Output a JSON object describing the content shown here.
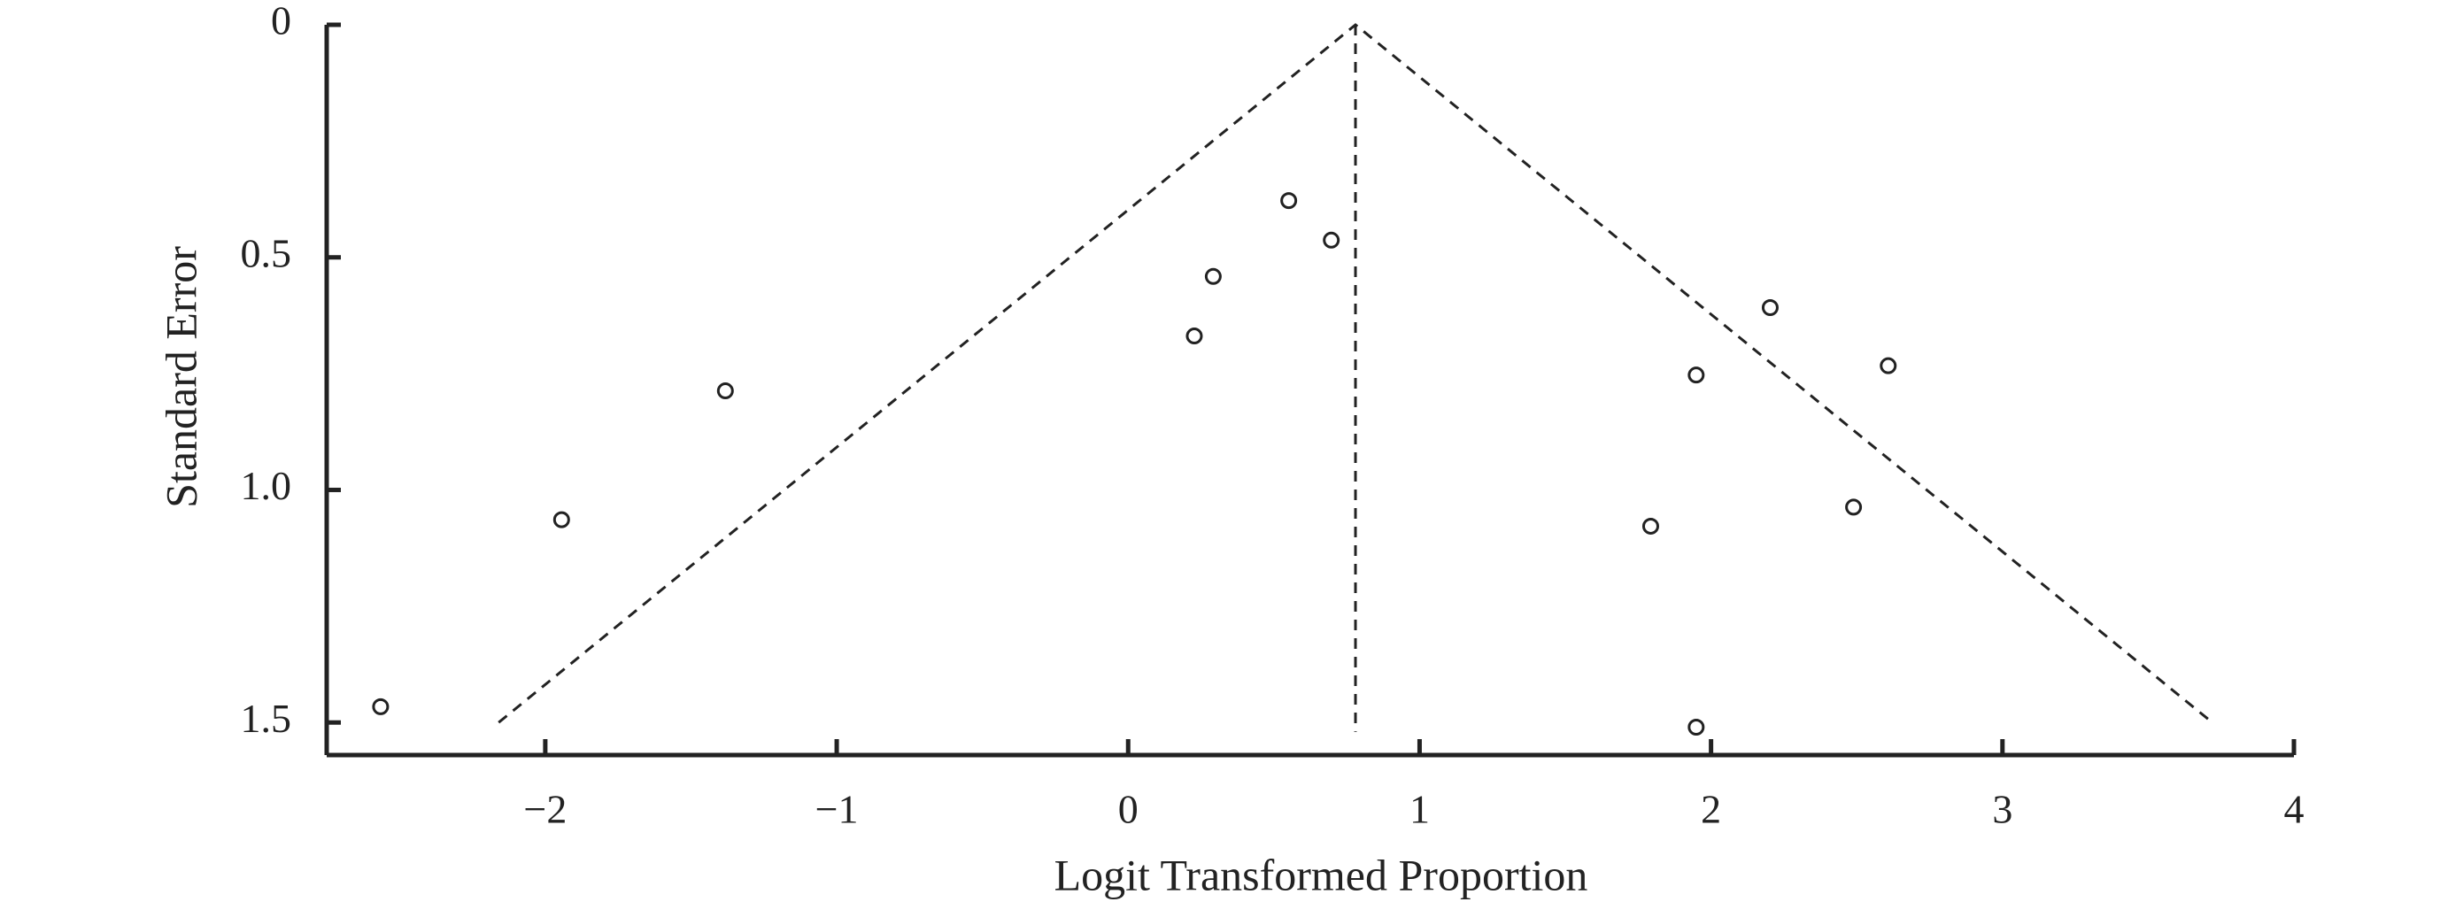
{
  "chart_data": {
    "type": "scatter",
    "x_label": "Logit Transformed Proportion",
    "y_label": "Standard Error",
    "x": [
      -2.565,
      -1.944,
      -1.382,
      0.227,
      0.292,
      0.551,
      0.697,
      2.203,
      1.949,
      2.608,
      1.793,
      2.489,
      1.949
    ],
    "values": [
      1.466,
      1.064,
      0.787,
      0.669,
      0.541,
      0.378,
      0.463,
      0.608,
      0.753,
      0.733,
      1.078,
      1.037,
      1.51
    ],
    "color": "#222222",
    "funnel": {
      "x": [
        -2.16,
        0.78,
        3.72
      ],
      "y": [
        1.5,
        0,
        1.5
      ]
    },
    "reference_line": {
      "x": 0.78,
      "y": [
        0,
        1.52
      ]
    },
    "xlim": [
      -2.75,
      4
    ],
    "ylim": [
      0,
      1.57
    ],
    "y_inverted": true,
    "xticks": [
      {
        "value": -2,
        "label": "−2"
      },
      {
        "value": -1,
        "label": "−1"
      },
      0,
      1,
      2,
      3,
      4
    ],
    "yticks": [
      0,
      0.5,
      {
        "value": 1,
        "label": "1.0"
      },
      1.5
    ]
  }
}
